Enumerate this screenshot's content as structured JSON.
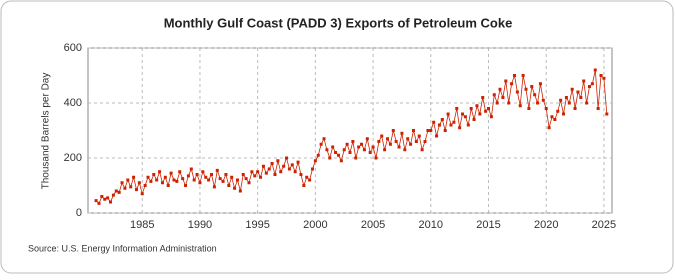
{
  "chart_data": {
    "type": "line",
    "title": "Monthly Gulf Coast (PADD 3) Exports of Petroleum Coke",
    "y_label": "Thousand Barrels per Day",
    "source": "Source: U.S. Energy Information Administration",
    "xlim": [
      1980.3,
      2025.7
    ],
    "xticks": [
      1985,
      1990,
      1995,
      2000,
      2005,
      2010,
      2015,
      2020,
      2025
    ],
    "ylim": [
      0,
      600
    ],
    "yticks": [
      0,
      200,
      400,
      600
    ],
    "grid": true,
    "x": [
      1981,
      1981.25,
      1981.5,
      1981.75,
      1982,
      1982.25,
      1982.5,
      1982.75,
      1983,
      1983.25,
      1983.5,
      1983.75,
      1984,
      1984.25,
      1984.5,
      1984.75,
      1985,
      1985.25,
      1985.5,
      1985.75,
      1986,
      1986.25,
      1986.5,
      1986.75,
      1987,
      1987.25,
      1987.5,
      1987.75,
      1988,
      1988.25,
      1988.5,
      1988.75,
      1989,
      1989.25,
      1989.5,
      1989.75,
      1990,
      1990.25,
      1990.5,
      1990.75,
      1991,
      1991.25,
      1991.5,
      1991.75,
      1992,
      1992.25,
      1992.5,
      1992.75,
      1993,
      1993.25,
      1993.5,
      1993.75,
      1994,
      1994.25,
      1994.5,
      1994.75,
      1995,
      1995.25,
      1995.5,
      1995.75,
      1996,
      1996.25,
      1996.5,
      1996.75,
      1997,
      1997.25,
      1997.5,
      1997.75,
      1998,
      1998.25,
      1998.5,
      1998.75,
      1999,
      1999.25,
      1999.5,
      1999.75,
      2000,
      2000.25,
      2000.5,
      2000.75,
      2001,
      2001.25,
      2001.5,
      2001.75,
      2002,
      2002.25,
      2002.5,
      2002.75,
      2003,
      2003.25,
      2003.5,
      2003.75,
      2004,
      2004.25,
      2004.5,
      2004.75,
      2005,
      2005.25,
      2005.5,
      2005.75,
      2006,
      2006.25,
      2006.5,
      2006.75,
      2007,
      2007.25,
      2007.5,
      2007.75,
      2008,
      2008.25,
      2008.5,
      2008.75,
      2009,
      2009.25,
      2009.5,
      2009.75,
      2010,
      2010.25,
      2010.5,
      2010.75,
      2011,
      2011.25,
      2011.5,
      2011.75,
      2012,
      2012.25,
      2012.5,
      2012.75,
      2013,
      2013.25,
      2013.5,
      2013.75,
      2014,
      2014.25,
      2014.5,
      2014.75,
      2015,
      2015.25,
      2015.5,
      2015.75,
      2016,
      2016.25,
      2016.5,
      2016.75,
      2017,
      2017.25,
      2017.5,
      2017.75,
      2018,
      2018.25,
      2018.5,
      2018.75,
      2019,
      2019.25,
      2019.5,
      2019.75,
      2020,
      2020.25,
      2020.5,
      2020.75,
      2021,
      2021.25,
      2021.5,
      2021.75,
      2022,
      2022.25,
      2022.5,
      2022.75,
      2023,
      2023.25,
      2023.5,
      2023.75,
      2024,
      2024.25,
      2024.5,
      2024.75,
      2025,
      2025.25
    ],
    "series": [
      {
        "color": "#cc2200",
        "values": [
          45,
          35,
          60,
          50,
          55,
          40,
          65,
          80,
          75,
          110,
          90,
          120,
          95,
          130,
          85,
          110,
          70,
          100,
          130,
          115,
          140,
          120,
          150,
          110,
          130,
          100,
          145,
          120,
          115,
          150,
          125,
          100,
          135,
          160,
          120,
          140,
          110,
          150,
          130,
          120,
          140,
          95,
          155,
          125,
          115,
          140,
          100,
          130,
          90,
          120,
          80,
          140,
          125,
          110,
          150,
          135,
          150,
          130,
          170,
          145,
          160,
          180,
          140,
          190,
          150,
          170,
          200,
          160,
          175,
          150,
          185,
          140,
          100,
          130,
          120,
          160,
          190,
          210,
          250,
          270,
          230,
          200,
          240,
          220,
          210,
          190,
          230,
          250,
          220,
          260,
          200,
          240,
          250,
          230,
          270,
          220,
          240,
          200,
          260,
          280,
          230,
          270,
          250,
          300,
          260,
          240,
          290,
          230,
          270,
          250,
          300,
          260,
          280,
          230,
          260,
          300,
          300,
          330,
          280,
          320,
          340,
          300,
          360,
          320,
          330,
          380,
          310,
          360,
          350,
          320,
          380,
          340,
          390,
          360,
          420,
          370,
          380,
          350,
          430,
          400,
          450,
          420,
          480,
          400,
          470,
          500,
          440,
          390,
          500,
          450,
          380,
          460,
          430,
          400,
          470,
          410,
          380,
          310,
          350,
          340,
          370,
          410,
          360,
          420,
          400,
          450,
          380,
          440,
          420,
          480,
          400,
          460,
          470,
          520,
          380,
          500,
          490,
          360
        ]
      }
    ]
  }
}
